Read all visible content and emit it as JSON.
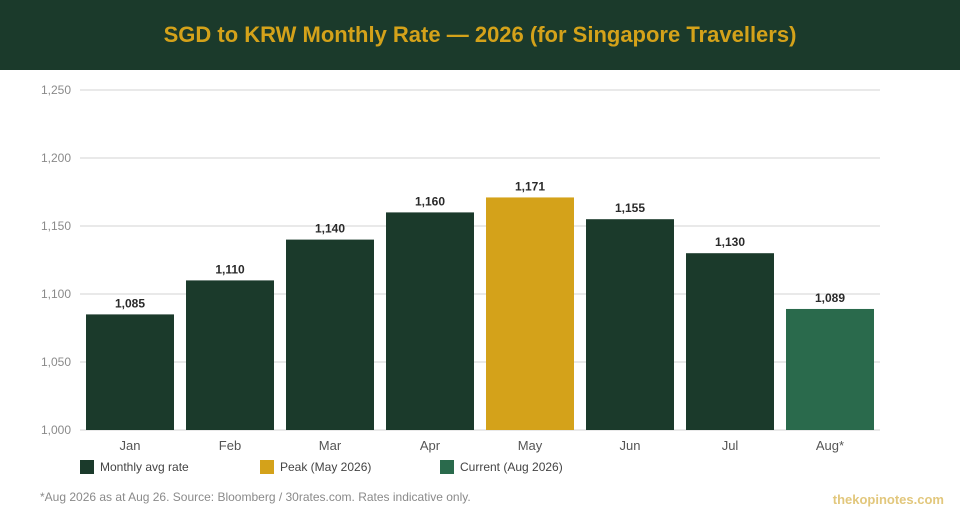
{
  "header": {
    "title": "SGD to KRW Monthly Rate — 2026 (for Singapore Travellers)"
  },
  "chart_data": {
    "type": "bar",
    "categories": [
      "Jan",
      "Feb",
      "Mar",
      "Apr",
      "May",
      "Jun",
      "Jul",
      "Aug*"
    ],
    "values": [
      1085,
      1110,
      1140,
      1160,
      1171,
      1155,
      1130,
      1089
    ],
    "data_labels": [
      "1,085",
      "1,110",
      "1,140",
      "1,160",
      "1,171",
      "1,155",
      "1,130",
      "1,089"
    ],
    "bar_colors": [
      "#1b3a2b",
      "#1b3a2b",
      "#1b3a2b",
      "#1b3a2b",
      "#d4a21a",
      "#1b3a2b",
      "#1b3a2b",
      "#2a6a4c"
    ],
    "ylim": [
      1000,
      1250
    ],
    "yticks": [
      1000,
      1050,
      1100,
      1150,
      1200,
      1250
    ],
    "ytick_labels": [
      "1,000",
      "1,050",
      "1,100",
      "1,150",
      "1,200",
      "1,250"
    ],
    "grid": true,
    "legend_position": "bottom-left",
    "legend": [
      {
        "label": "Monthly avg rate",
        "color": "#1b3a2b"
      },
      {
        "label": "Peak (May 2026)",
        "color": "#d4a21a"
      },
      {
        "label": "Current (Aug 2026)",
        "color": "#2a6a4c"
      }
    ]
  },
  "footer": {
    "note": "*Aug 2026 as at Aug 26. Source: Bloomberg / 30rates.com. Rates indicative only.",
    "brand": "thekopinotes.com"
  }
}
